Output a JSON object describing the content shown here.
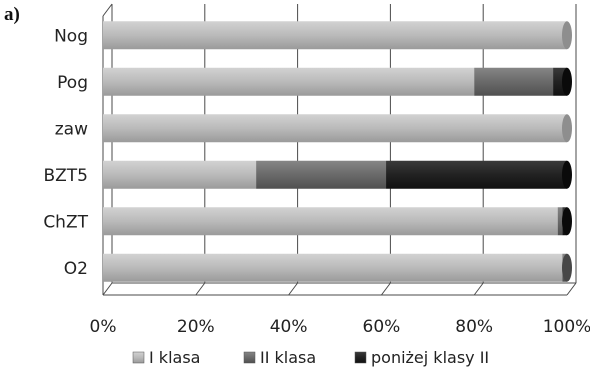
{
  "panel_label": "a)",
  "colors": {
    "I klasa": "#b4b4b4",
    "II klasa": "#6c6c6c",
    "poniżej klasy II": "#262626",
    "grid": "#4a4a4a",
    "background": "#ffffff"
  },
  "chart_data": {
    "type": "bar",
    "orientation": "horizontal",
    "stacked": "percent",
    "categories": [
      "Nog",
      "Pog",
      "zaw",
      "BZT5",
      "ChZT",
      "O2"
    ],
    "series": [
      {
        "name": "I klasa",
        "values": [
          100,
          80,
          100,
          33,
          98,
          99
        ]
      },
      {
        "name": "II klasa",
        "values": [
          0,
          17,
          0,
          28,
          1,
          1
        ]
      },
      {
        "name": "poniżej klasy II",
        "values": [
          0,
          3,
          0,
          39,
          1,
          0
        ]
      }
    ],
    "x_ticks": [
      "0%",
      "20%",
      "40%",
      "60%",
      "80%",
      "100%"
    ],
    "xlim": [
      0,
      100
    ],
    "grid": true,
    "legend_position": "bottom",
    "title": "",
    "xlabel": "",
    "ylabel": ""
  }
}
